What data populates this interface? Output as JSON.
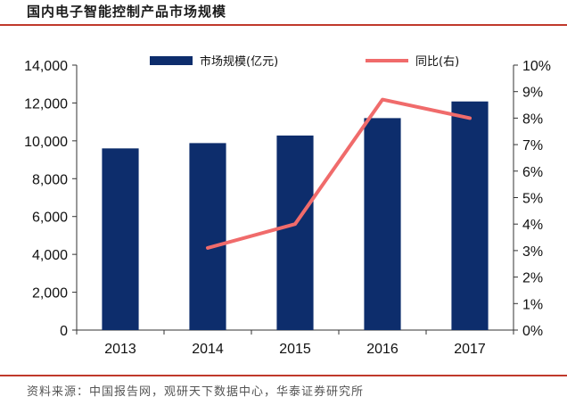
{
  "title": "国内电子智能控制产品市场规模",
  "source": "资料来源：中国报告网，观研天下数据中心，华泰证券研究所",
  "chart_data": {
    "type": "bar",
    "categories": [
      "2013",
      "2014",
      "2015",
      "2016",
      "2017"
    ],
    "series": [
      {
        "name": "市场规模(亿元)",
        "type": "bar",
        "axis": "left",
        "color": "#0d2d6c",
        "values": [
          9600,
          9880,
          10280,
          11200,
          12080
        ]
      },
      {
        "name": "同比(右)",
        "type": "line",
        "axis": "right",
        "color": "#f06b6b",
        "values": [
          null,
          3.1,
          4.0,
          8.7,
          8.0
        ]
      }
    ],
    "y_left": {
      "min": 0,
      "max": 14000,
      "ticks": [
        "0",
        "2,000",
        "4,000",
        "6,000",
        "8,000",
        "10,000",
        "12,000",
        "14,000"
      ]
    },
    "y_right": {
      "min": 0,
      "max": 10,
      "ticks": [
        "0%",
        "1%",
        "2%",
        "3%",
        "4%",
        "5%",
        "6%",
        "7%",
        "8%",
        "9%",
        "10%"
      ]
    },
    "legend": "top",
    "grid": false
  }
}
